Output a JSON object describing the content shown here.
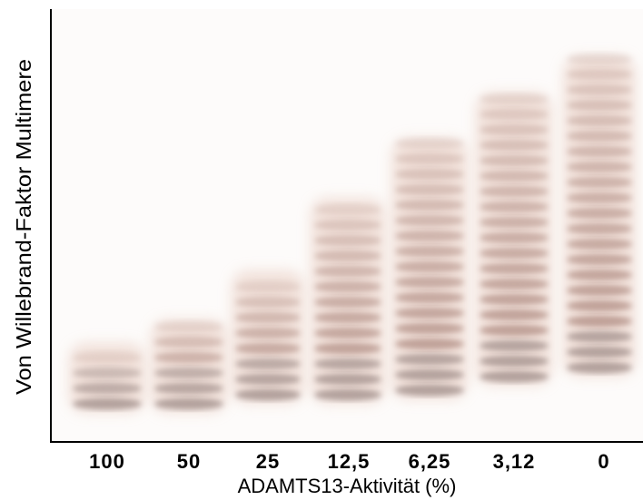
{
  "image": {
    "y_axis_label": "Von Willebrand-Faktor Multimere",
    "x_axis_label": "ADAMTS13-Aktivität (%)",
    "lanes": [
      "100",
      "50",
      "25",
      "12,5",
      "6,25",
      "3,12",
      "0"
    ]
  }
}
